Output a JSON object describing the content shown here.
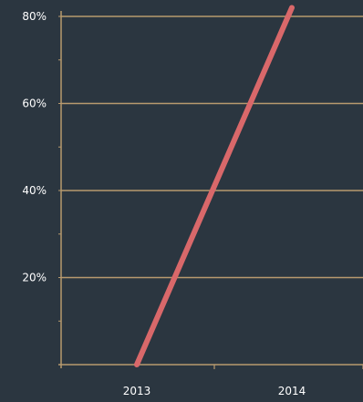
{
  "colors": {
    "background": "#2b3640",
    "grid": "#b89a6e",
    "axis": "#b89a6e",
    "line": "#d9686a",
    "text": "#ffffff"
  },
  "chart_data": {
    "type": "line",
    "title": "",
    "xlabel": "",
    "ylabel": "",
    "categories": [
      "2013",
      "2014"
    ],
    "x": [
      2013,
      2014
    ],
    "series": [
      {
        "values": [
          0,
          82
        ]
      }
    ],
    "ylim": [
      0,
      80
    ],
    "yticks": [
      20,
      40,
      60,
      80
    ],
    "ytick_labels": [
      "20%",
      "40%",
      "60%",
      "80%"
    ],
    "grid": true,
    "legend": "none"
  }
}
